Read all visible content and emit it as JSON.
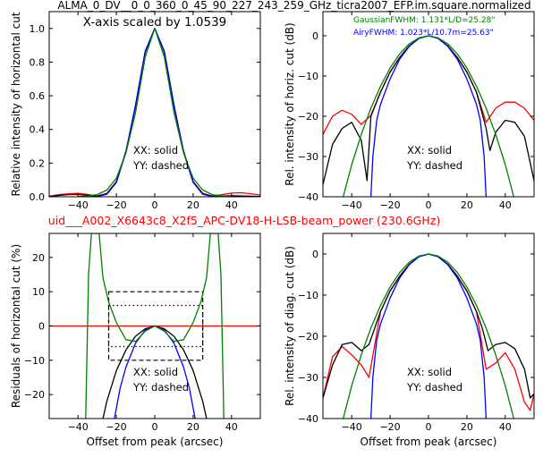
{
  "title_main": "ALMA_0_DV__0_0_360_0_45_90_227_243_259_GHz_ticra2007_EFP.im.square.normalized",
  "title_sub": "uid___A002_X6643c8_X2f5_APC-DV18-H-LSB-beam_power (230.6GHz)",
  "colors": {
    "xx": "#ff0000",
    "yy": "#000000",
    "gauss": "#008000",
    "airy": "#0000ff",
    "subtitle": "#ff0000"
  },
  "chart_data": [
    {
      "id": "top-left",
      "type": "line",
      "title": "",
      "annotation": "X-axis scaled by 1.0539",
      "xlabel": "",
      "ylabel": "Relative intensity of horizontal cut",
      "xlim": [
        -55,
        55
      ],
      "ylim": [
        0,
        1.1
      ],
      "xticks": [
        -40,
        -20,
        0,
        20,
        40
      ],
      "yticks": [
        0,
        0.2,
        0.4,
        0.6,
        0.8,
        1.0
      ],
      "ytick_labels": [
        "0.0",
        "0.2",
        "0.4",
        "0.6",
        "0.8",
        "1.0"
      ],
      "legend_text": [
        "XX: solid",
        "YY: dashed"
      ],
      "series": [
        {
          "color": "#ff0000",
          "x": [
            -55,
            -50,
            -45,
            -40,
            -35,
            -30,
            -25,
            -20,
            -15,
            -10,
            -5,
            0,
            5,
            10,
            15,
            20,
            25,
            30,
            35,
            40,
            45,
            50,
            55
          ],
          "y": [
            0.003,
            0.013,
            0.018,
            0.02,
            0.014,
            0.005,
            0.02,
            0.09,
            0.27,
            0.54,
            0.86,
            1.0,
            0.86,
            0.54,
            0.27,
            0.09,
            0.02,
            0.005,
            0.012,
            0.022,
            0.024,
            0.018,
            0.01
          ]
        },
        {
          "color": "#000000",
          "x": [
            -55,
            -50,
            -45,
            -40,
            -35,
            -30,
            -25,
            -20,
            -15,
            -10,
            -5,
            0,
            5,
            10,
            15,
            20,
            25,
            30,
            35,
            40,
            45,
            50,
            55
          ],
          "y": [
            0.002,
            0.008,
            0.013,
            0.014,
            0.009,
            0.003,
            0.018,
            0.09,
            0.27,
            0.54,
            0.86,
            1.0,
            0.86,
            0.54,
            0.27,
            0.09,
            0.018,
            0.003,
            0.004,
            0.006,
            0.005,
            0.003,
            0.002
          ]
        },
        {
          "color": "#0000ff",
          "x": [
            -30,
            -25,
            -20,
            -15,
            -10,
            -5,
            0,
            5,
            10,
            15,
            20,
            25,
            30
          ],
          "y": [
            0.002,
            0.015,
            0.085,
            0.265,
            0.545,
            0.865,
            1.0,
            0.865,
            0.545,
            0.265,
            0.085,
            0.015,
            0.002
          ]
        },
        {
          "color": "#008000",
          "x": [
            -40,
            -35,
            -30,
            -25,
            -20,
            -15,
            -10,
            -5,
            0,
            5,
            10,
            15,
            20,
            25,
            30,
            35,
            40
          ],
          "y": [
            0.001,
            0.004,
            0.013,
            0.04,
            0.11,
            0.26,
            0.5,
            0.83,
            1.0,
            0.83,
            0.5,
            0.26,
            0.11,
            0.04,
            0.013,
            0.004,
            0.001
          ]
        }
      ]
    },
    {
      "id": "top-right",
      "type": "line",
      "title": "",
      "annotation_lines": [
        "GaussianFWHM: 1.131*L/D=25.28\"",
        "AiryFWHM: 1.023*L/10.7m=25.63\""
      ],
      "xlabel": "",
      "ylabel": "Rel. intensity of horiz. cut (dB)",
      "xlim": [
        -55,
        55
      ],
      "ylim": [
        -40,
        6
      ],
      "xticks": [
        -40,
        -20,
        0,
        20,
        40
      ],
      "yticks": [
        -40,
        -30,
        -20,
        -10,
        0
      ],
      "ytick_labels": [
        "−40",
        "−30",
        "−20",
        "−10",
        "0"
      ],
      "legend_text": [
        "XX: solid",
        "YY: dashed"
      ],
      "series": [
        {
          "color": "#ff0000",
          "x": [
            -55,
            -50,
            -45,
            -40,
            -35,
            -30,
            -25,
            -20,
            -15,
            -10,
            -5,
            0,
            5,
            10,
            15,
            20,
            25,
            30,
            35,
            40,
            45,
            50,
            55
          ],
          "y": [
            -24.5,
            -20,
            -18.5,
            -19.5,
            -22,
            -19.8,
            -14,
            -9,
            -5.4,
            -2.5,
            -0.65,
            0,
            -0.65,
            -2.5,
            -5.4,
            -9,
            -14,
            -21.5,
            -18,
            -16.5,
            -16.5,
            -18,
            -21
          ]
        },
        {
          "color": "#000000",
          "x": [
            -55,
            -50,
            -45,
            -40,
            -35,
            -32,
            -30,
            -25,
            -20,
            -15,
            -10,
            -5,
            0,
            5,
            10,
            15,
            20,
            25,
            30,
            32,
            35,
            40,
            45,
            50,
            55
          ],
          "y": [
            -37,
            -27,
            -23,
            -21.5,
            -26,
            -36,
            -20,
            -14,
            -9,
            -5.4,
            -2.5,
            -0.65,
            0,
            -0.65,
            -2.5,
            -5.4,
            -9,
            -14,
            -23,
            -28.5,
            -24,
            -21,
            -21.5,
            -25,
            -36
          ]
        },
        {
          "color": "#0000ff",
          "x": [
            -30,
            -29,
            -27,
            -25,
            -20,
            -15,
            -10,
            -5,
            0,
            5,
            10,
            15,
            20,
            25,
            27,
            29,
            30
          ],
          "y": [
            -40,
            -30,
            -21,
            -17,
            -10.7,
            -5.8,
            -2.6,
            -0.65,
            0,
            -0.65,
            -2.6,
            -5.8,
            -10.7,
            -17,
            -21,
            -30,
            -40
          ]
        },
        {
          "color": "#008000",
          "x": [
            -45,
            -40,
            -35,
            -30,
            -25,
            -20,
            -15,
            -10,
            -5,
            0,
            5,
            10,
            15,
            20,
            25,
            30,
            35,
            40,
            45
          ],
          "y": [
            -41,
            -32,
            -24.5,
            -18,
            -12.5,
            -8,
            -4.5,
            -2,
            -0.5,
            0,
            -0.5,
            -2,
            -4.5,
            -8,
            -12.5,
            -18,
            -24.5,
            -32,
            -41
          ]
        }
      ]
    },
    {
      "id": "bottom-left",
      "type": "line",
      "title": "",
      "xlabel": "Offset from peak (arcsec)",
      "ylabel": "Residuals of horizontal cut (%)",
      "xlim": [
        -55,
        55
      ],
      "ylim": [
        -27,
        27
      ],
      "xticks": [
        -40,
        -20,
        0,
        20,
        40
      ],
      "yticks": [
        -20,
        -10,
        0,
        10,
        20
      ],
      "ytick_labels": [
        "−20",
        "−10",
        "0",
        "10",
        "20"
      ],
      "legend_text": [
        "XX: solid",
        "YY: dashed"
      ],
      "boxes": {
        "dashed": {
          "x": [
            -24,
            25
          ],
          "y": [
            -10,
            10
          ]
        },
        "dotted": {
          "x": [
            -24,
            25
          ],
          "y": [
            -6,
            6
          ]
        }
      },
      "series": [
        {
          "color": "#ff0000",
          "x": [
            -55,
            55
          ],
          "y": [
            0,
            0
          ]
        },
        {
          "color": "#000000",
          "x": [
            -27,
            -25,
            -20,
            -15,
            -10,
            -5,
            0,
            5,
            10,
            15,
            20,
            25,
            27
          ],
          "y": [
            -27,
            -22,
            -13,
            -7,
            -3,
            -0.8,
            0,
            -0.8,
            -3,
            -7,
            -13,
            -22,
            -27
          ]
        },
        {
          "color": "#0000ff",
          "x": [
            -21,
            -18,
            -15,
            -10,
            -5,
            0,
            5,
            10,
            15,
            18,
            21
          ],
          "y": [
            -27,
            -18,
            -12,
            -5,
            -1.2,
            0,
            -1.2,
            -5,
            -12,
            -18,
            -27
          ]
        },
        {
          "color": "#008000",
          "x": [
            -36,
            -34.5,
            -33,
            -31,
            -29,
            -27,
            -24,
            -20,
            -15,
            -10,
            -5,
            0,
            5,
            10,
            15,
            20,
            24,
            27,
            29,
            31,
            33,
            34.5,
            36
          ],
          "y": [
            -27,
            15,
            27,
            27,
            27,
            14,
            7,
            1,
            -4,
            -4.5,
            -1.5,
            0,
            -1.5,
            -4.5,
            -4,
            1,
            7,
            14,
            27,
            27,
            27,
            15,
            -27
          ]
        }
      ]
    },
    {
      "id": "bottom-right",
      "type": "line",
      "title": "",
      "xlabel": "Offset from peak (arcsec)",
      "ylabel": "Rel. intensity of diag. cut (dB)",
      "xlim": [
        -55,
        55
      ],
      "ylim": [
        -40,
        5
      ],
      "xticks": [
        -40,
        -20,
        0,
        20,
        40
      ],
      "yticks": [
        -40,
        -30,
        -20,
        -10,
        0
      ],
      "ytick_labels": [
        "−40",
        "−30",
        "−20",
        "−10",
        "0"
      ],
      "legend_text": [
        "XX: solid",
        "YY: dashed"
      ],
      "series": [
        {
          "color": "#ff0000",
          "x": [
            -55,
            -50,
            -45,
            -40,
            -35,
            -31,
            -25,
            -20,
            -15,
            -10,
            -5,
            0,
            5,
            10,
            15,
            20,
            25,
            30,
            35,
            40,
            45,
            50,
            53,
            55
          ],
          "y": [
            -35,
            -25,
            -22.5,
            -24.5,
            -27,
            -30,
            -14,
            -9,
            -5.4,
            -2.5,
            -0.65,
            0,
            -0.65,
            -2.5,
            -5.4,
            -9,
            -14,
            -28,
            -26.5,
            -24,
            -28,
            -36,
            -38,
            -34
          ]
        },
        {
          "color": "#000000",
          "x": [
            -55,
            -50,
            -45,
            -40,
            -35,
            -31,
            -28,
            -25,
            -20,
            -15,
            -10,
            -5,
            0,
            5,
            10,
            15,
            20,
            25,
            28,
            31,
            35,
            40,
            45,
            50,
            53,
            55
          ],
          "y": [
            -35,
            -27,
            -22,
            -21.5,
            -23.5,
            -22,
            -18,
            -14,
            -9,
            -5.4,
            -2.5,
            -0.65,
            0,
            -0.65,
            -2.5,
            -5.4,
            -9,
            -14,
            -18,
            -23.5,
            -22,
            -21.5,
            -23,
            -28,
            -35,
            -34
          ]
        },
        {
          "color": "#0000ff",
          "x": [
            -30,
            -29,
            -27,
            -25,
            -20,
            -15,
            -10,
            -5,
            0,
            5,
            10,
            15,
            20,
            25,
            27,
            29,
            30
          ],
          "y": [
            -40,
            -30,
            -21,
            -17,
            -10.7,
            -5.8,
            -2.6,
            -0.65,
            0,
            -0.65,
            -2.6,
            -5.8,
            -10.7,
            -17,
            -21,
            -30,
            -40
          ]
        },
        {
          "color": "#008000",
          "x": [
            -45,
            -40,
            -35,
            -30,
            -25,
            -20,
            -15,
            -10,
            -5,
            0,
            5,
            10,
            15,
            20,
            25,
            30,
            35,
            40,
            45
          ],
          "y": [
            -41,
            -32,
            -24.5,
            -18,
            -12.5,
            -8,
            -4.5,
            -2,
            -0.5,
            0,
            -0.5,
            -2,
            -4.5,
            -8,
            -12.5,
            -18,
            -24.5,
            -32,
            -41
          ]
        }
      ]
    }
  ]
}
